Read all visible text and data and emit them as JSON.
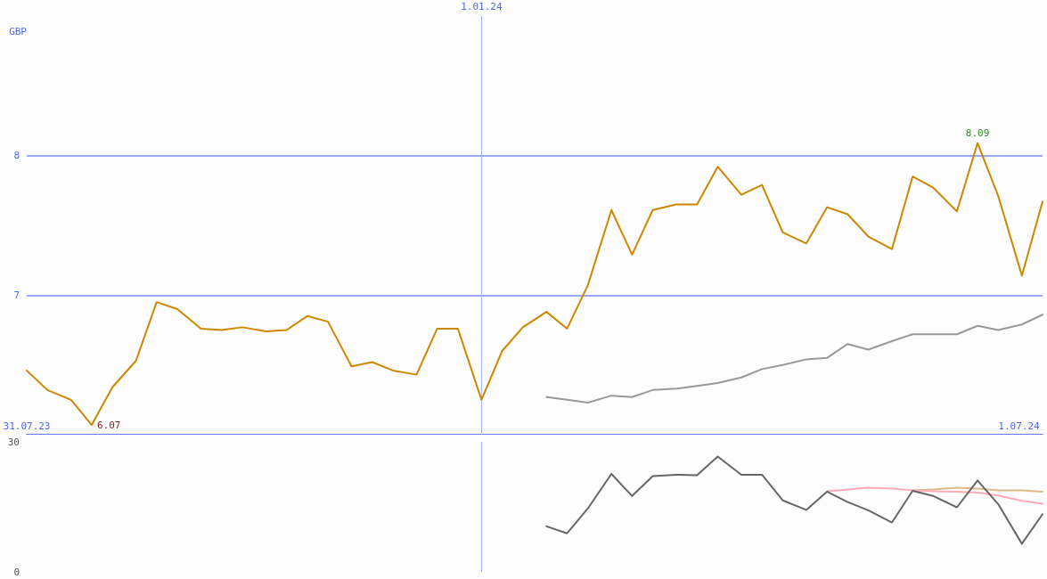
{
  "chart_data": [
    {
      "type": "line",
      "ylabel": "GBP",
      "marker": "none",
      "grid": "y",
      "x": [
        "2023-07-31",
        "2023-08-07",
        "2023-08-15",
        "2023-08-22",
        "2023-08-29",
        "2023-09-06",
        "2023-09-13",
        "2023-09-20",
        "2023-09-28",
        "2023-10-05",
        "2023-10-12",
        "2023-10-20",
        "2023-10-27",
        "2023-11-03",
        "2023-11-10",
        "2023-11-18",
        "2023-11-25",
        "2023-12-02",
        "2023-12-10",
        "2023-12-17",
        "2023-12-24",
        "2024-01-01",
        "2024-01-08",
        "2024-01-15",
        "2024-01-23",
        "2024-01-30",
        "2024-02-06",
        "2024-02-14",
        "2024-02-21",
        "2024-02-28",
        "2024-03-07",
        "2024-03-14",
        "2024-03-21",
        "2024-03-29",
        "2024-04-05",
        "2024-04-12",
        "2024-04-20",
        "2024-04-27",
        "2024-05-04",
        "2024-05-11",
        "2024-05-19",
        "2024-05-26",
        "2024-06-02",
        "2024-06-10",
        "2024-06-17",
        "2024-06-24",
        "2024-07-02",
        "2024-07-09"
      ],
      "series": [
        {
          "color": "#cc8800",
          "values": [
            6.46,
            6.32,
            6.25,
            6.07,
            6.34,
            6.53,
            6.95,
            6.9,
            6.76,
            6.75,
            6.77,
            6.74,
            6.75,
            6.85,
            6.81,
            6.49,
            6.52,
            6.46,
            6.43,
            6.76,
            6.76,
            6.25,
            6.6,
            6.77,
            6.88,
            6.76,
            7.07,
            7.61,
            7.29,
            7.61,
            7.65,
            7.65,
            7.92,
            7.72,
            7.79,
            7.45,
            7.37,
            7.63,
            7.58,
            7.42,
            7.33,
            7.85,
            7.77,
            7.6,
            8.09,
            7.71,
            7.14,
            7.67
          ]
        },
        {
          "color": "#999999",
          "x": [
            "2024-01-23",
            "2024-01-30",
            "2024-02-06",
            "2024-02-14",
            "2024-02-21",
            "2024-02-28",
            "2024-03-07",
            "2024-03-14",
            "2024-03-21",
            "2024-03-29",
            "2024-04-05",
            "2024-04-12",
            "2024-04-20",
            "2024-04-27",
            "2024-05-04",
            "2024-05-11",
            "2024-05-19",
            "2024-05-26",
            "2024-06-02",
            "2024-06-10",
            "2024-06-17",
            "2024-06-24",
            "2024-07-02",
            "2024-07-09"
          ],
          "values": [
            6.27,
            6.25,
            6.23,
            6.28,
            6.27,
            6.32,
            6.33,
            6.35,
            6.37,
            6.41,
            6.47,
            6.5,
            6.54,
            6.55,
            6.65,
            6.61,
            6.67,
            6.72,
            6.72,
            6.72,
            6.78,
            6.75,
            6.79,
            6.86
          ]
        }
      ],
      "xlim": [
        "2023-07-31",
        "2024-07-09"
      ],
      "xticks": [
        {
          "value": "2023-07-31",
          "label": "31.07.23"
        },
        {
          "value": "2024-07-01",
          "label": "1.07.24"
        }
      ],
      "ylim": [
        6,
        9
      ],
      "yticks": [
        7,
        8
      ],
      "ref_lines": [
        {
          "axis": "x",
          "value": "2024-01-01",
          "label": "1.01.24"
        }
      ],
      "annotations": [
        {
          "text": "6.07",
          "x": "2023-08-22",
          "y": 6.07
        },
        {
          "text": "8.09",
          "x": "2024-06-17",
          "y": 8.09
        }
      ]
    },
    {
      "type": "line",
      "marker": "none",
      "grid": false,
      "tick_labels": "y",
      "x": [
        "2024-01-23",
        "2024-01-30",
        "2024-02-06",
        "2024-02-14",
        "2024-02-21",
        "2024-02-28",
        "2024-03-07",
        "2024-03-14",
        "2024-03-21",
        "2024-03-29",
        "2024-04-05",
        "2024-04-12",
        "2024-04-20",
        "2024-04-27",
        "2024-05-04",
        "2024-05-11",
        "2024-05-19",
        "2024-05-26",
        "2024-06-02",
        "2024-06-10",
        "2024-06-17",
        "2024-06-24",
        "2024-07-02",
        "2024-07-09"
      ],
      "series": [
        {
          "color": "#666666",
          "values": [
            10.5,
            8.9,
            14.6,
            22.6,
            17.5,
            22.1,
            22.4,
            22.3,
            26.6,
            22.4,
            22.4,
            16.5,
            14.3,
            18.5,
            16.1,
            14.2,
            11.4,
            18.7,
            17.5,
            14.9,
            21.1,
            15.6,
            6.5,
            13.3
          ]
        },
        {
          "color": "#ffaabb",
          "x": [
            "2024-04-27",
            "2024-05-04",
            "2024-05-11",
            "2024-05-19",
            "2024-05-26",
            "2024-06-02",
            "2024-06-10",
            "2024-06-17",
            "2024-06-24",
            "2024-07-02",
            "2024-07-09"
          ],
          "values": [
            18.6,
            19.0,
            19.4,
            19.2,
            18.8,
            18.6,
            18.5,
            18.3,
            17.6,
            16.4,
            15.7
          ]
        },
        {
          "color": "#ddbb88",
          "x": [
            "2024-05-26",
            "2024-06-02",
            "2024-06-10",
            "2024-06-17",
            "2024-06-24",
            "2024-07-02",
            "2024-07-09"
          ],
          "values": [
            18.8,
            19.0,
            19.4,
            19.2,
            18.8,
            18.8,
            18.5
          ]
        }
      ],
      "xlim": [
        "2023-07-31",
        "2024-07-09"
      ],
      "ylim": [
        0,
        30
      ],
      "yticks": [
        0,
        30
      ],
      "ref_lines": [
        {
          "axis": "x",
          "value": "2024-01-01",
          "label": null
        }
      ]
    }
  ]
}
